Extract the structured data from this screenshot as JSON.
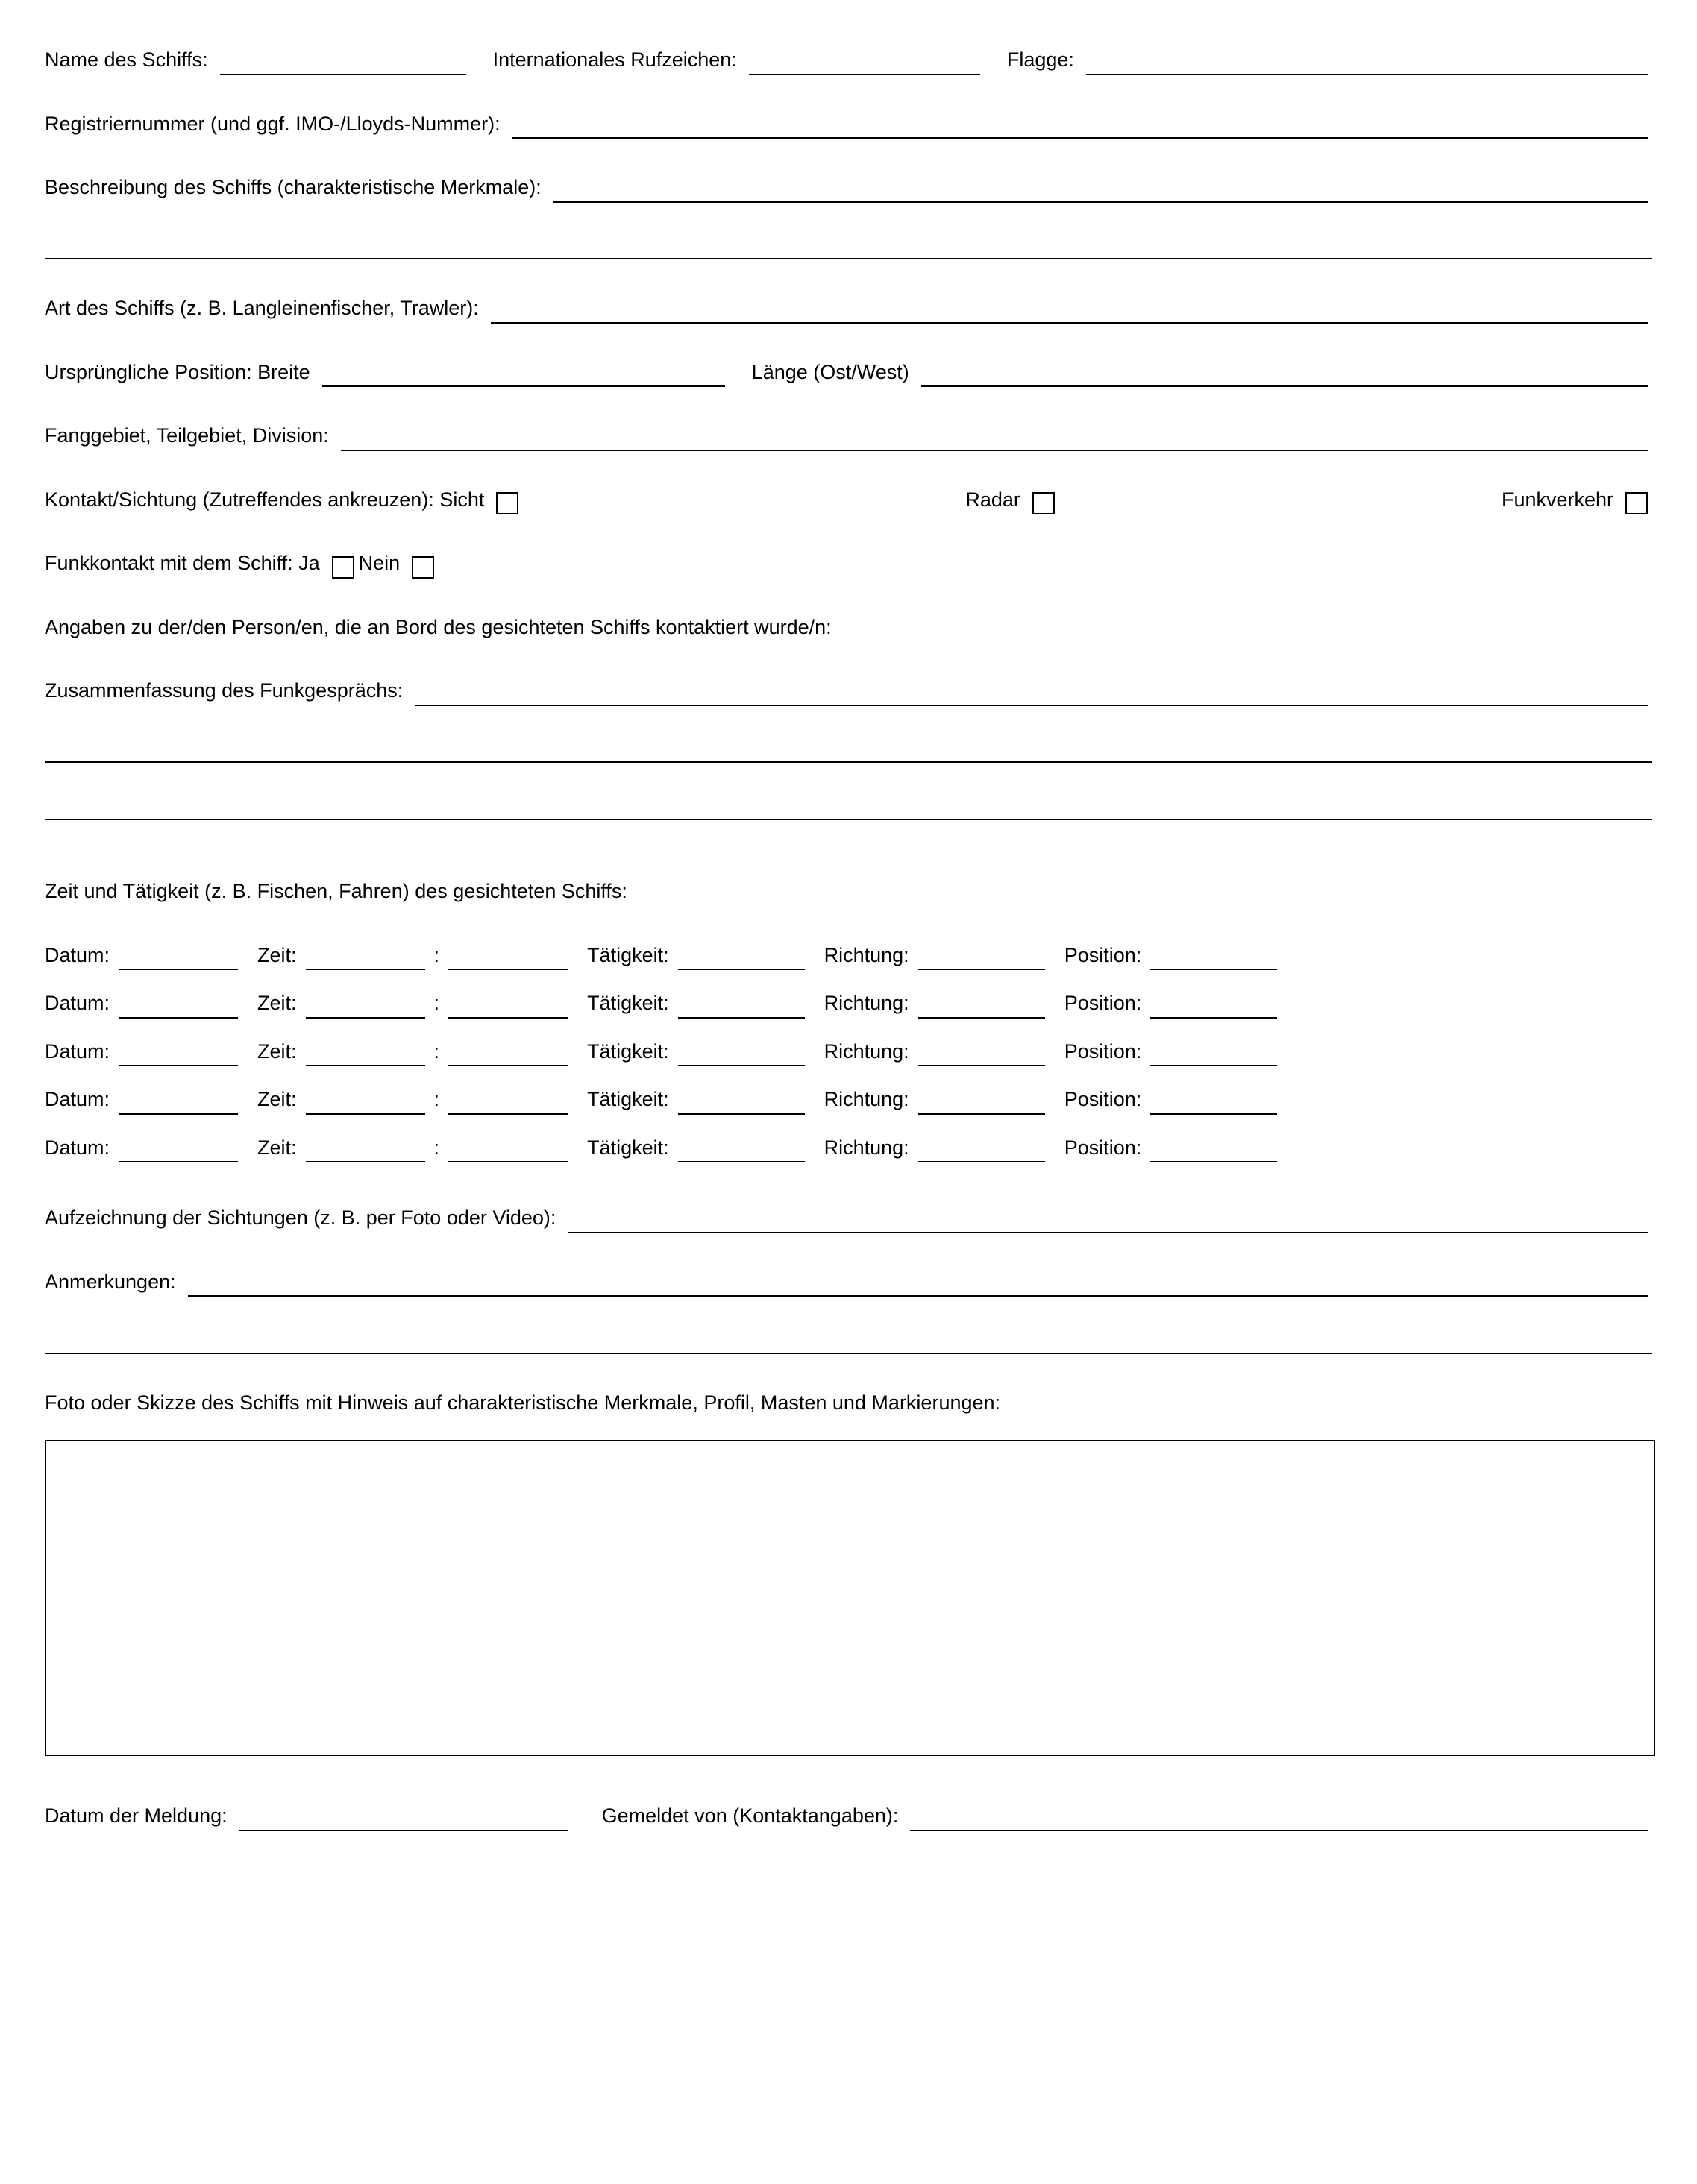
{
  "labels": {
    "shipName": "Name des Schiffs:",
    "callSign": "Internationales Rufzeichen:",
    "flag": "Flagge:",
    "regNumber": "Registriernummer (und ggf. IMO-/Lloyds-Nummer):",
    "description": "Beschreibung des Schiffs (charakteristische Merkmale):",
    "shipType": "Art des Schiffs (z. B. Langleinenfischer, Trawler):",
    "origPos": "Ursprüngliche Position: Breite",
    "longitude": "Länge (Ost/West)",
    "fishingArea": "Fanggebiet, Teilgebiet, Division:",
    "contactSighting": "Kontakt/Sichtung (Zutreffendes ankreuzen): Sicht",
    "radar": "Radar",
    "radio": "Funkverkehr",
    "radioContact": "Funkkontakt mit dem Schiff: Ja",
    "no": "Nein",
    "persons": "Angaben zu der/den Person/en, die an Bord des gesichteten Schiffs kontaktiert wurde/n:",
    "radioSummary": "Zusammenfassung des Funkgesprächs:",
    "timeActivity": "Zeit und Tätigkeit (z. B. Fischen, Fahren) des gesichteten Schiffs:",
    "date": "Datum:",
    "time": "Zeit:",
    "colon": ":",
    "activity": "Tätigkeit:",
    "direction": "Richtung:",
    "position": "Position:",
    "recording": "Aufzeichnung der Sichtungen (z. B. per Foto oder Video):",
    "remarks": "Anmerkungen:",
    "photoSketch": "Foto oder Skizze des Schiffs mit Hinweis auf charakteristische Merkmale, Profil, Masten und Markierungen:",
    "reportDate": "Datum der Meldung:",
    "reportedBy": "Gemeldet von (Kontaktangaben):"
  },
  "activityRowCount": 5
}
